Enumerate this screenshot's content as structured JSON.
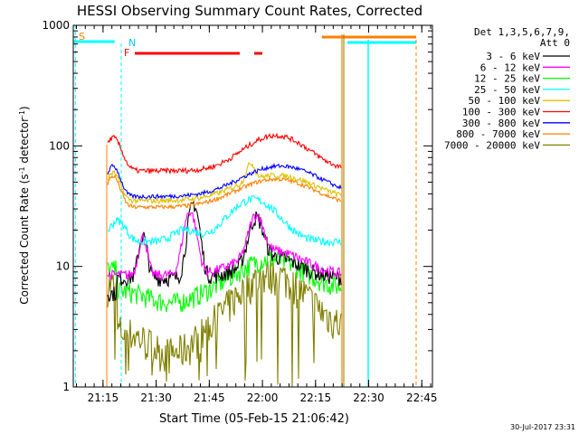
{
  "chart_data": {
    "type": "line",
    "title": "HESSI Observing Summary Count Rates, Corrected",
    "xlabel": "Start Time (05-Feb-15 21:06:42)",
    "ylabel_main": "Corrected Count Rate (s",
    "ylabel_sup1": "-1",
    "ylabel_mid": " detector",
    "ylabel_sup2": "-1",
    "ylabel_end": ")",
    "y_scale": "log",
    "ylim": [
      1,
      1000
    ],
    "xlim_minutes": [
      21.11,
      22.8
    ],
    "x_ticks": [
      {
        "label": "21:15",
        "value": 21.25
      },
      {
        "label": "21:30",
        "value": 21.5
      },
      {
        "label": "21:45",
        "value": 21.75
      },
      {
        "label": "22:00",
        "value": 22.0
      },
      {
        "label": "22:15",
        "value": 22.25
      },
      {
        "label": "22:30",
        "value": 22.5
      },
      {
        "label": "22:45",
        "value": 22.75
      }
    ],
    "y_ticks": [
      {
        "label": "1",
        "value": 1
      },
      {
        "label": "10",
        "value": 10
      },
      {
        "label": "100",
        "value": 100
      },
      {
        "label": "1000",
        "value": 1000
      }
    ],
    "legend_header": [
      "Det 1,3,5,6,7,9,",
      "Att 0"
    ],
    "legend_position": "right",
    "series": [
      {
        "name": "3 - 6 keV",
        "color": "#000000"
      },
      {
        "name": "6 - 12 keV",
        "color": "#ff00ff"
      },
      {
        "name": "12 - 25 keV",
        "color": "#00ff00"
      },
      {
        "name": "25 - 50 keV",
        "color": "#00ffff"
      },
      {
        "name": "50 - 100 keV",
        "color": "#e0c000"
      },
      {
        "name": "100 - 300 keV",
        "color": "#ff0000"
      },
      {
        "name": "300 - 800 keV",
        "color": "#0000ff"
      },
      {
        "name": "800 - 7000 keV",
        "color": "#ff8000"
      },
      {
        "name": "7000 - 20000 keV",
        "color": "#808000"
      }
    ],
    "flags": [
      {
        "label": "S",
        "color": "#ff8000"
      },
      {
        "label": "N",
        "color": "#00c8ff"
      },
      {
        "label": "F",
        "color": "#ff0000"
      }
    ],
    "timestamp": "30-Jul-2017 23:31"
  }
}
